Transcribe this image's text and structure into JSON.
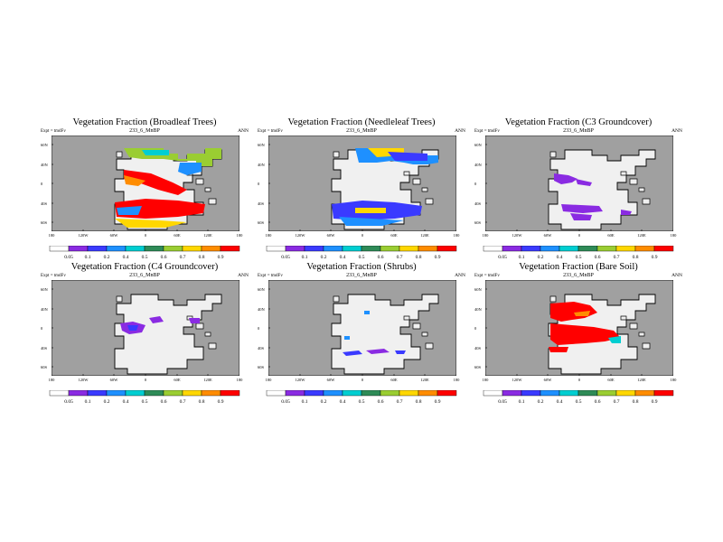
{
  "expt_label": "Expt = tmdFv",
  "season": "ANN",
  "subtitle": "233_6_MnBP",
  "lat_labels": [
    "60N",
    "40N",
    "0",
    "40S",
    "60S"
  ],
  "lon_labels": [
    "180",
    "120W",
    "60W",
    "0",
    "60E",
    "120E",
    "180"
  ],
  "colorbar_labels": [
    "0.05",
    "0.1",
    "0.2",
    "0.4",
    "0.5",
    "0.6",
    "0.7",
    "0.8",
    "0.9"
  ],
  "colorbar_colors": [
    "#ffffff",
    "#8a2be2",
    "#3a3aff",
    "#1e90ff",
    "#00ced1",
    "#2e8b57",
    "#9acd32",
    "#ffd700",
    "#ff8c00",
    "#ff0000"
  ],
  "colors": {
    "ocean": "#a0a0a0",
    "land_base": "#f0f0f0"
  },
  "panels": [
    {
      "title": "Vegetation Fraction (Broadleaf Trees)",
      "pattern": "broadleaf"
    },
    {
      "title": "Vegetation Fraction (Needleleaf Trees)",
      "pattern": "needleleaf"
    },
    {
      "title": "Vegetation Fraction (C3 Groundcover)",
      "pattern": "c3"
    },
    {
      "title": "Vegetation Fraction (C4 Groundcover)",
      "pattern": "c4"
    },
    {
      "title": "Vegetation Fraction (Shrubs)",
      "pattern": "shrubs"
    },
    {
      "title": "Vegetation Fraction (Bare Soil)",
      "pattern": "baresoil"
    }
  ]
}
